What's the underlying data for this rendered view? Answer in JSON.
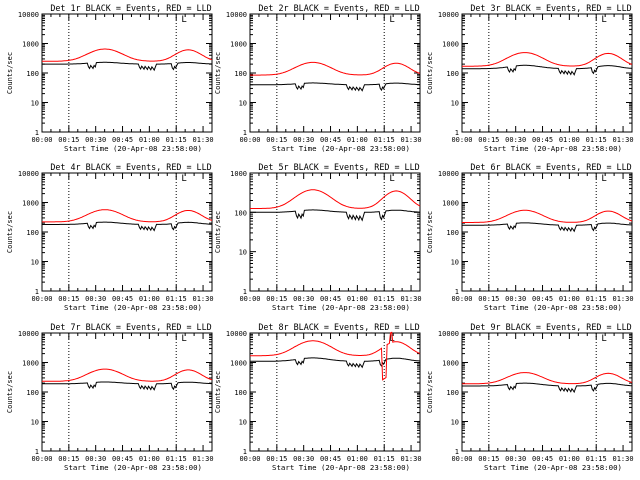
{
  "chart_data": [
    {
      "type": "line",
      "title": "Det 1r BLACK = Events, RED = LLD",
      "flag": "L",
      "xlabel": "Start Time (20-Apr-08 23:58:00)",
      "ylabel": "Counts/sec",
      "x_start": "00:00",
      "x_end": "01:35",
      "xticks": [
        "00:00",
        "00:15",
        "00:30",
        "00:45",
        "01:00",
        "01:15",
        "01:30"
      ],
      "yscale": "log",
      "ylim": [
        1,
        10000
      ],
      "yticks": [
        "1",
        "10",
        "100",
        "1000",
        "10000"
      ],
      "vlines": [
        "00:15",
        "01:15"
      ],
      "series": [
        {
          "color": "#000000",
          "base": 200,
          "peak": 1.15,
          "dips": [
            [
              0.3,
              0.62
            ]
          ],
          "bumps": []
        },
        {
          "color": "#ff0000",
          "base": 250,
          "peak": 2.6,
          "dips": [],
          "bumps": []
        }
      ]
    },
    {
      "type": "line",
      "title": "Det 2r BLACK = Events, RED = LLD",
      "flag": "L",
      "xlabel": "Start Time (20-Apr-08 23:58:00)",
      "ylabel": "Counts/sec",
      "x_start": "00:00",
      "x_end": "01:35",
      "xticks": [
        "00:00",
        "00:15",
        "00:30",
        "00:45",
        "01:00",
        "01:15",
        "01:30"
      ],
      "yscale": "log",
      "ylim": [
        1,
        10000
      ],
      "yticks": [
        "1",
        "10",
        "100",
        "1000",
        "10000"
      ],
      "vlines": [
        "00:15",
        "01:15"
      ],
      "series": [
        {
          "color": "#000000",
          "base": 40,
          "peak": 1.15,
          "dips": [
            [
              0.3,
              0.62
            ]
          ],
          "bumps": []
        },
        {
          "color": "#ff0000",
          "base": 85,
          "peak": 2.7,
          "dips": [],
          "bumps": []
        }
      ]
    },
    {
      "type": "line",
      "title": "Det 3r BLACK = Events, RED = LLD",
      "flag": "L",
      "xlabel": "Start Time (20-Apr-08 23:58:00)",
      "ylabel": "Counts/sec",
      "x_start": "00:00",
      "x_end": "01:35",
      "xticks": [
        "00:00",
        "00:15",
        "00:30",
        "00:45",
        "01:00",
        "01:15",
        "01:30"
      ],
      "yscale": "log",
      "ylim": [
        1,
        10000
      ],
      "yticks": [
        "1",
        "10",
        "100",
        "1000",
        "10000"
      ],
      "vlines": [
        "00:15",
        "01:15"
      ],
      "series": [
        {
          "color": "#000000",
          "base": 140,
          "peak": 1.3,
          "dips": [
            [
              0.3,
              0.62
            ]
          ],
          "bumps": []
        },
        {
          "color": "#ff0000",
          "base": 170,
          "peak": 2.9,
          "dips": [],
          "bumps": []
        }
      ]
    },
    {
      "type": "line",
      "title": "Det 4r BLACK = Events, RED = LLD",
      "flag": "L",
      "xlabel": "Start Time (20-Apr-08 23:58:00)",
      "ylabel": "Counts/sec",
      "x_start": "00:00",
      "x_end": "01:35",
      "xticks": [
        "00:00",
        "00:15",
        "00:30",
        "00:45",
        "01:00",
        "01:15",
        "01:30"
      ],
      "yscale": "log",
      "ylim": [
        1,
        10000
      ],
      "yticks": [
        "1",
        "10",
        "100",
        "1000",
        "10000"
      ],
      "vlines": [
        "00:15",
        "01:15"
      ],
      "series": [
        {
          "color": "#000000",
          "base": 180,
          "peak": 1.2,
          "dips": [
            [
              0.3,
              0.62
            ]
          ],
          "bumps": []
        },
        {
          "color": "#ff0000",
          "base": 220,
          "peak": 2.6,
          "dips": [],
          "bumps": []
        }
      ]
    },
    {
      "type": "line",
      "title": "Det 5r BLACK = Events, RED = LLD",
      "flag": "L",
      "xlabel": "Start Time (20-Apr-08 23:58:00)",
      "ylabel": "Counts/sec",
      "x_start": "00:00",
      "x_end": "01:35",
      "xticks": [
        "00:00",
        "00:15",
        "00:30",
        "00:45",
        "01:00",
        "01:15",
        "01:30"
      ],
      "yscale": "log",
      "ylim": [
        1,
        1000
      ],
      "yticks": [
        "1",
        "10",
        "100",
        "1000"
      ],
      "vlines": [
        "00:15",
        "01:15"
      ],
      "series": [
        {
          "color": "#000000",
          "base": 100,
          "peak": 1.15,
          "dips": [
            [
              0.3,
              0.62
            ]
          ],
          "bumps": []
        },
        {
          "color": "#ff0000",
          "base": 125,
          "peak": 3.0,
          "dips": [],
          "bumps": []
        }
      ]
    },
    {
      "type": "line",
      "title": "Det 6r BLACK = Events, RED = LLD",
      "flag": "L",
      "xlabel": "Start Time (20-Apr-08 23:58:00)",
      "ylabel": "Counts/sec",
      "x_start": "00:00",
      "x_end": "01:35",
      "xticks": [
        "00:00",
        "00:15",
        "00:30",
        "00:45",
        "01:00",
        "01:15",
        "01:30"
      ],
      "yscale": "log",
      "ylim": [
        1,
        10000
      ],
      "yticks": [
        "1",
        "10",
        "100",
        "1000",
        "10000"
      ],
      "vlines": [
        "00:15",
        "01:15"
      ],
      "series": [
        {
          "color": "#000000",
          "base": 170,
          "peak": 1.2,
          "dips": [
            [
              0.3,
              0.62
            ]
          ],
          "bumps": []
        },
        {
          "color": "#ff0000",
          "base": 210,
          "peak": 2.6,
          "dips": [],
          "bumps": []
        }
      ]
    },
    {
      "type": "line",
      "title": "Det 7r BLACK = Events, RED = LLD",
      "flag": "L",
      "xlabel": "Start Time (20-Apr-08 23:58:00)",
      "ylabel": "Counts/sec",
      "x_start": "00:00",
      "x_end": "01:35",
      "xticks": [
        "00:00",
        "00:15",
        "00:30",
        "00:45",
        "01:00",
        "01:15",
        "01:30"
      ],
      "yscale": "log",
      "ylim": [
        1,
        10000
      ],
      "yticks": [
        "1",
        "10",
        "100",
        "1000",
        "10000"
      ],
      "vlines": [
        "00:15",
        "01:15"
      ],
      "series": [
        {
          "color": "#000000",
          "base": 190,
          "peak": 1.15,
          "dips": [
            [
              0.3,
              0.62
            ]
          ],
          "bumps": []
        },
        {
          "color": "#ff0000",
          "base": 230,
          "peak": 2.6,
          "dips": [],
          "bumps": []
        }
      ]
    },
    {
      "type": "line",
      "title": "Det 8r BLACK = Events, RED = LLD",
      "flag": "L",
      "xlabel": "Start Time (20-Apr-08 23:58:00)",
      "ylabel": "Counts/sec",
      "x_start": "00:00",
      "x_end": "01:35",
      "xticks": [
        "00:00",
        "00:15",
        "00:30",
        "00:45",
        "01:00",
        "01:15",
        "01:30"
      ],
      "yscale": "log",
      "ylim": [
        1,
        10000
      ],
      "yticks": [
        "1",
        "10",
        "100",
        "1000",
        "10000"
      ],
      "vlines": [
        "00:15",
        "01:15"
      ],
      "series": [
        {
          "color": "#000000",
          "base": 1100,
          "peak": 1.3,
          "dips": [
            [
              0.3,
              0.62
            ]
          ],
          "bumps": []
        },
        {
          "color": "#ff0000",
          "base": 1700,
          "peak": 3.2,
          "dips": [
            [
              0.79,
              0.08
            ]
          ],
          "bumps": [
            [
              0.83,
              2.2
            ]
          ]
        }
      ]
    },
    {
      "type": "line",
      "title": "Det 9r BLACK = Events, RED = LLD",
      "flag": "L",
      "xlabel": "Start Time (20-Apr-08 23:58:00)",
      "ylabel": "Counts/sec",
      "x_start": "00:00",
      "x_end": "01:35",
      "xticks": [
        "00:00",
        "00:15",
        "00:30",
        "00:45",
        "01:00",
        "01:15",
        "01:30"
      ],
      "yscale": "log",
      "ylim": [
        1,
        10000
      ],
      "yticks": [
        "1",
        "10",
        "100",
        "1000",
        "10000"
      ],
      "vlines": [
        "00:15",
        "01:15"
      ],
      "series": [
        {
          "color": "#000000",
          "base": 160,
          "peak": 1.25,
          "dips": [
            [
              0.3,
              0.62
            ]
          ],
          "bumps": []
        },
        {
          "color": "#ff0000",
          "base": 190,
          "peak": 2.4,
          "dips": [],
          "bumps": []
        }
      ]
    }
  ]
}
